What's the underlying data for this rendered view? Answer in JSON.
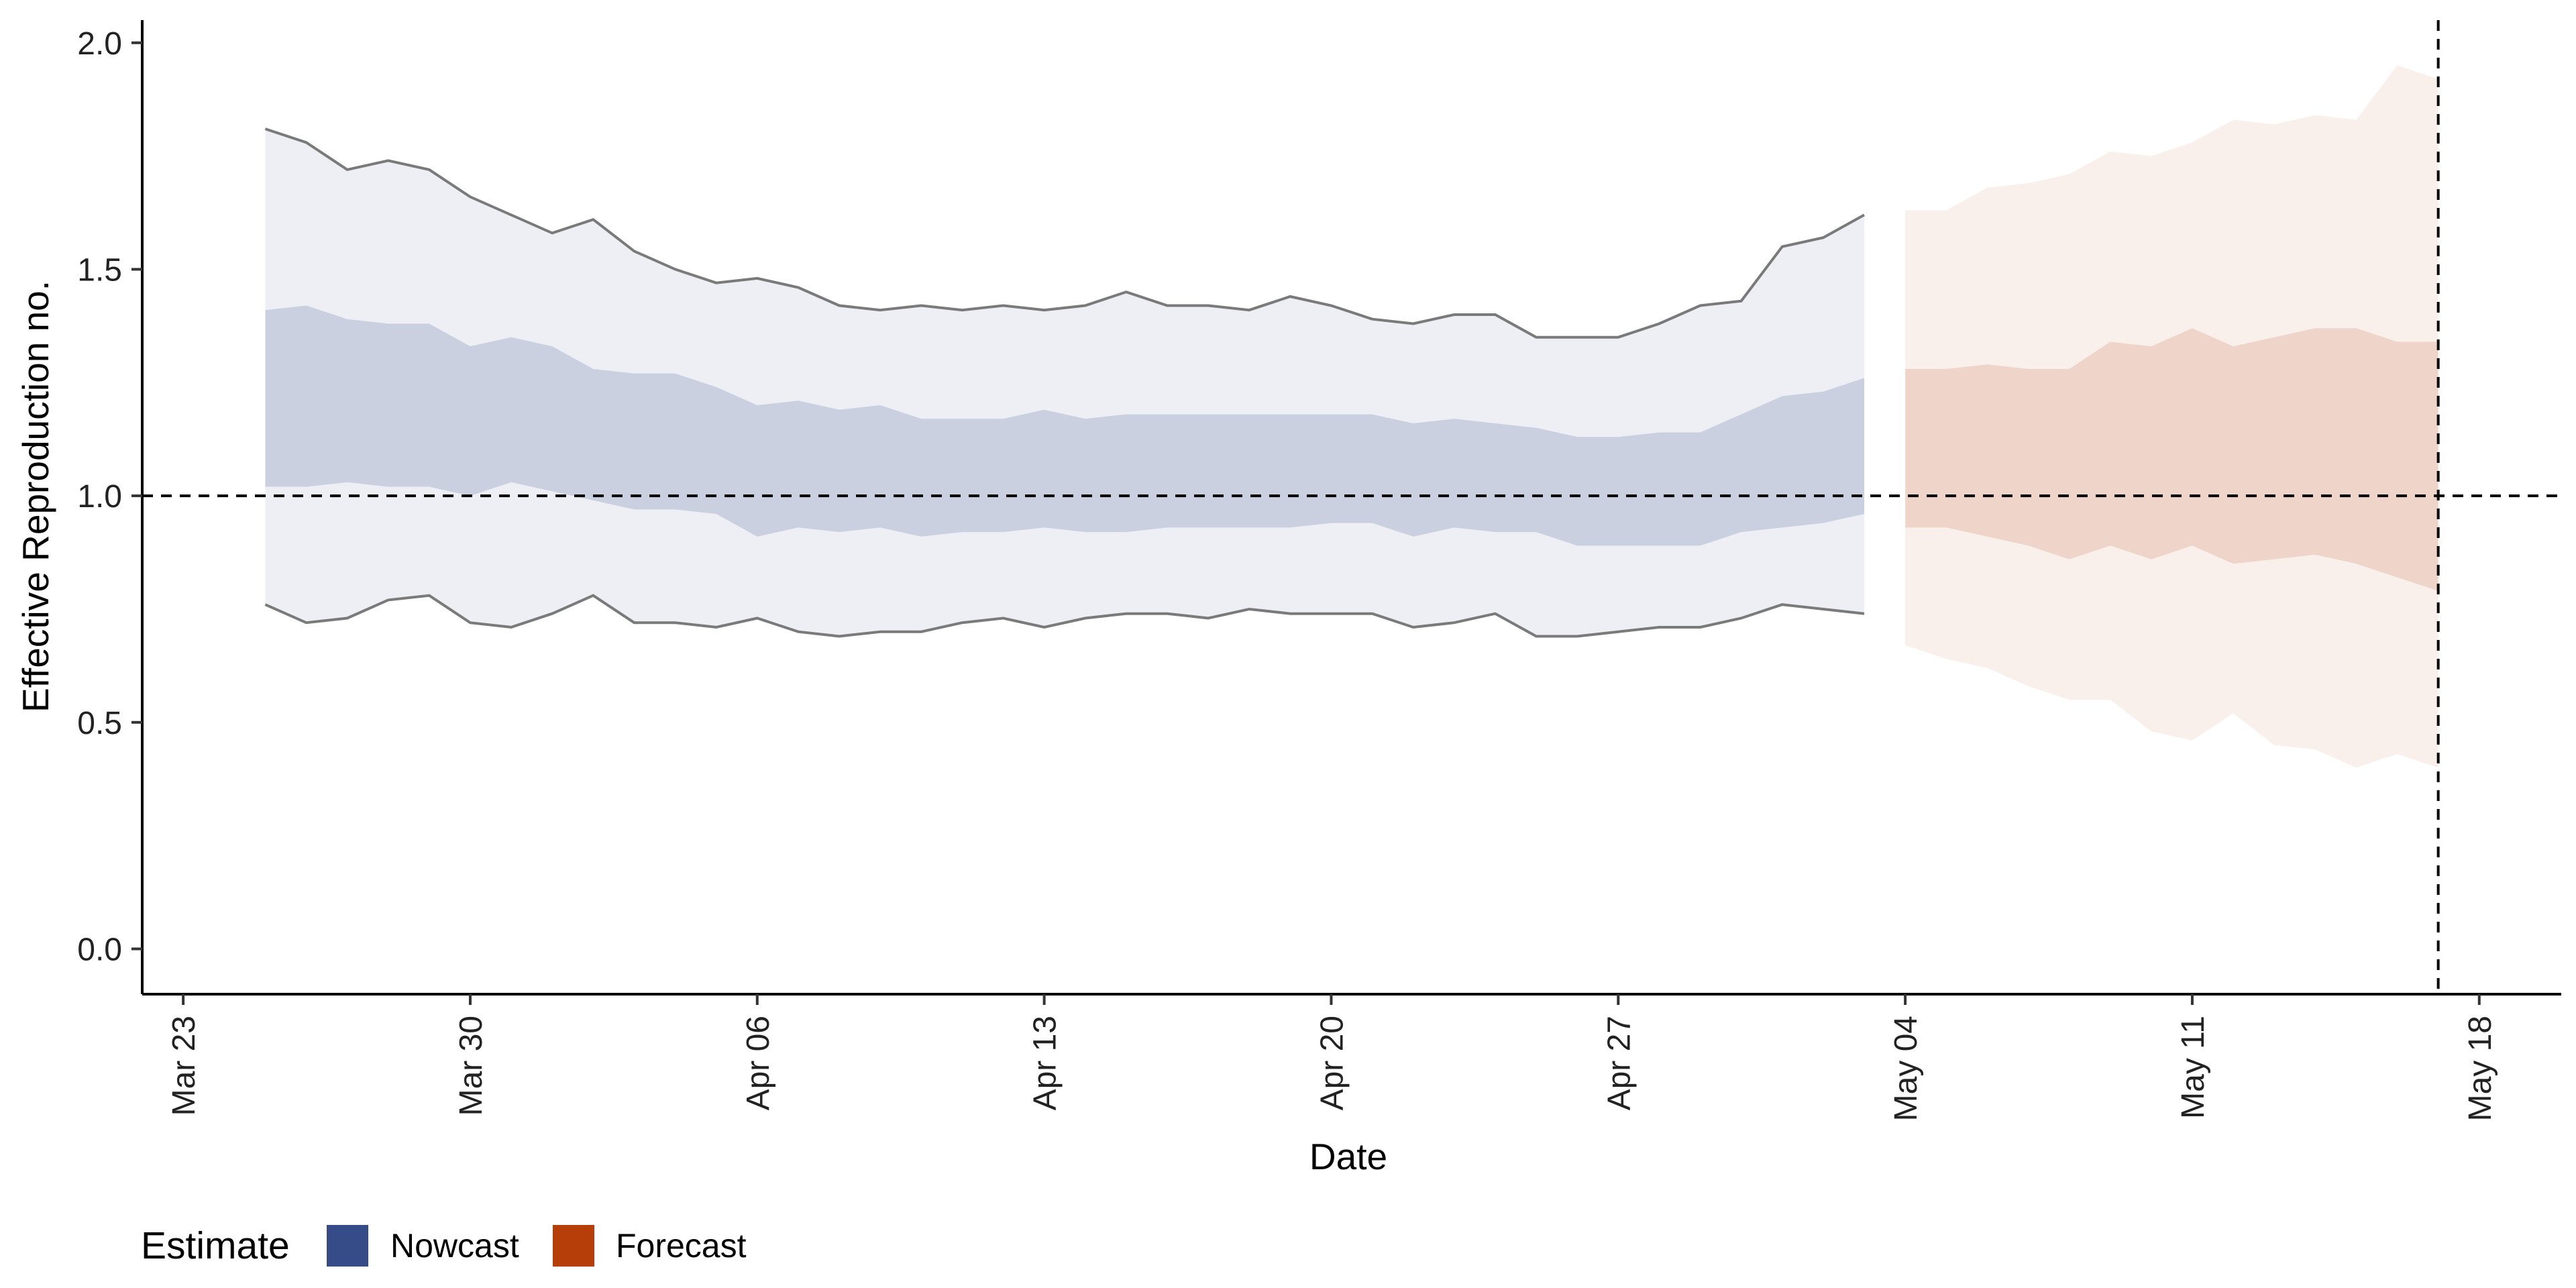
{
  "chart_data": {
    "type": "area",
    "xlabel": "Date",
    "ylabel": "Effective Reproduction no.",
    "x_ticks": [
      "Mar 23",
      "Mar 30",
      "Apr 06",
      "Apr 13",
      "Apr 20",
      "Apr 27",
      "May 04",
      "May 11",
      "May 18"
    ],
    "x_tick_dates": [
      "2020-03-23",
      "2020-03-30",
      "2020-04-06",
      "2020-04-13",
      "2020-04-20",
      "2020-04-27",
      "2020-05-04",
      "2020-05-11",
      "2020-05-18"
    ],
    "y_ticks": [
      "0.0",
      "0.5",
      "1.0",
      "1.5",
      "2.0"
    ],
    "xlim": [
      "2020-03-22",
      "2020-05-20"
    ],
    "ylim": [
      -0.1,
      2.05
    ],
    "reference_line_y": 1.0,
    "reference_line_date": "2020-05-17",
    "grid": false,
    "legend": {
      "title": "Estimate",
      "position": "bottom-left",
      "entries": [
        {
          "label": "Nowcast",
          "color": "#354c88"
        },
        {
          "label": "Forecast",
          "color": "#b63e09"
        }
      ]
    },
    "series": [
      {
        "name": "Nowcast",
        "color": "#354c88",
        "x": [
          "2020-03-25",
          "2020-03-26",
          "2020-03-27",
          "2020-03-28",
          "2020-03-29",
          "2020-03-30",
          "2020-03-31",
          "2020-04-01",
          "2020-04-02",
          "2020-04-03",
          "2020-04-04",
          "2020-04-05",
          "2020-04-06",
          "2020-04-07",
          "2020-04-08",
          "2020-04-09",
          "2020-04-10",
          "2020-04-11",
          "2020-04-12",
          "2020-04-13",
          "2020-04-14",
          "2020-04-15",
          "2020-04-16",
          "2020-04-17",
          "2020-04-18",
          "2020-04-19",
          "2020-04-20",
          "2020-04-21",
          "2020-04-22",
          "2020-04-23",
          "2020-04-24",
          "2020-04-25",
          "2020-04-26",
          "2020-04-27",
          "2020-04-28",
          "2020-04-29",
          "2020-04-30",
          "2020-05-01",
          "2020-05-02",
          "2020-05-03"
        ],
        "lower_90": [
          0.76,
          0.72,
          0.73,
          0.77,
          0.78,
          0.72,
          0.71,
          0.74,
          0.78,
          0.72,
          0.72,
          0.71,
          0.73,
          0.7,
          0.69,
          0.7,
          0.7,
          0.72,
          0.73,
          0.71,
          0.73,
          0.74,
          0.74,
          0.73,
          0.75,
          0.74,
          0.74,
          0.74,
          0.71,
          0.72,
          0.74,
          0.69,
          0.69,
          0.7,
          0.71,
          0.71,
          0.73,
          0.76,
          0.75,
          0.74
        ],
        "upper_90": [
          1.81,
          1.78,
          1.72,
          1.74,
          1.72,
          1.66,
          1.62,
          1.58,
          1.61,
          1.54,
          1.5,
          1.47,
          1.48,
          1.46,
          1.42,
          1.41,
          1.42,
          1.41,
          1.42,
          1.41,
          1.42,
          1.45,
          1.42,
          1.42,
          1.41,
          1.44,
          1.42,
          1.39,
          1.38,
          1.4,
          1.4,
          1.35,
          1.35,
          1.35,
          1.38,
          1.42,
          1.43,
          1.55,
          1.57,
          1.62
        ],
        "lower_50": [
          1.02,
          1.02,
          1.03,
          1.02,
          1.02,
          1.0,
          1.03,
          1.01,
          0.99,
          0.97,
          0.97,
          0.96,
          0.91,
          0.93,
          0.92,
          0.93,
          0.91,
          0.92,
          0.92,
          0.93,
          0.92,
          0.92,
          0.93,
          0.93,
          0.93,
          0.93,
          0.94,
          0.94,
          0.91,
          0.93,
          0.92,
          0.92,
          0.89,
          0.89,
          0.89,
          0.89,
          0.92,
          0.93,
          0.94,
          0.96
        ],
        "upper_50": [
          1.41,
          1.42,
          1.39,
          1.38,
          1.38,
          1.33,
          1.35,
          1.33,
          1.28,
          1.27,
          1.27,
          1.24,
          1.2,
          1.21,
          1.19,
          1.2,
          1.17,
          1.17,
          1.17,
          1.19,
          1.17,
          1.18,
          1.18,
          1.18,
          1.18,
          1.18,
          1.18,
          1.18,
          1.16,
          1.17,
          1.16,
          1.15,
          1.13,
          1.13,
          1.14,
          1.14,
          1.18,
          1.22,
          1.23,
          1.26
        ]
      },
      {
        "name": "Forecast",
        "color": "#b63e09",
        "x": [
          "2020-05-04",
          "2020-05-05",
          "2020-05-06",
          "2020-05-07",
          "2020-05-08",
          "2020-05-09",
          "2020-05-10",
          "2020-05-11",
          "2020-05-12",
          "2020-05-13",
          "2020-05-14",
          "2020-05-15",
          "2020-05-16",
          "2020-05-17"
        ],
        "lower_90": [
          0.67,
          0.64,
          0.62,
          0.58,
          0.55,
          0.55,
          0.48,
          0.46,
          0.52,
          0.45,
          0.44,
          0.4,
          0.43,
          0.4
        ],
        "upper_90": [
          1.63,
          1.63,
          1.68,
          1.69,
          1.71,
          1.76,
          1.75,
          1.78,
          1.83,
          1.82,
          1.84,
          1.83,
          1.95,
          1.92
        ],
        "lower_50": [
          0.93,
          0.93,
          0.91,
          0.89,
          0.86,
          0.89,
          0.86,
          0.89,
          0.85,
          0.86,
          0.87,
          0.85,
          0.82,
          0.79
        ],
        "upper_50": [
          1.28,
          1.28,
          1.29,
          1.28,
          1.28,
          1.34,
          1.33,
          1.37,
          1.33,
          1.35,
          1.37,
          1.37,
          1.34,
          1.34
        ]
      }
    ]
  }
}
